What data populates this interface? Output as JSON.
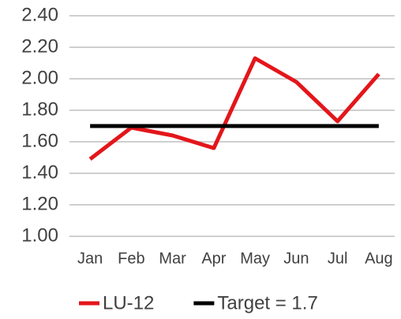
{
  "chart_data": {
    "type": "line",
    "categories": [
      "Jan",
      "Feb",
      "Mar",
      "Apr",
      "May",
      "Jun",
      "Jul",
      "Aug"
    ],
    "series": [
      {
        "name": "LU-12",
        "color": "#e3161b",
        "values": [
          1.49,
          1.69,
          1.64,
          1.56,
          2.13,
          1.98,
          1.73,
          2.03
        ]
      },
      {
        "name": "Target = 1.7",
        "color": "#000000",
        "values": [
          1.7,
          1.7,
          1.7,
          1.7,
          1.7,
          1.7,
          1.7,
          1.7
        ]
      }
    ],
    "ylim": [
      1.0,
      2.4
    ],
    "yticks": [
      {
        "value": 1.0,
        "label": "1.00"
      },
      {
        "value": 1.2,
        "label": "1.20"
      },
      {
        "value": 1.4,
        "label": "1.40"
      },
      {
        "value": 1.6,
        "label": "1.60"
      },
      {
        "value": 1.8,
        "label": "1.80"
      },
      {
        "value": 2.0,
        "label": "2.00"
      },
      {
        "value": 2.2,
        "label": "2.20"
      },
      {
        "value": 2.4,
        "label": "2.40"
      }
    ],
    "grid": true,
    "legend": "bottom"
  }
}
